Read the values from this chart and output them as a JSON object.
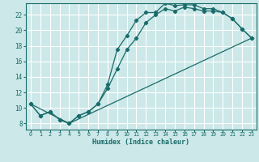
{
  "xlabel": "Humidex (Indice chaleur)",
  "bg_color": "#cce8e8",
  "grid_color": "#ffffff",
  "line_color": "#1a6b6b",
  "xlim": [
    -0.5,
    23.5
  ],
  "ylim": [
    7.2,
    23.5
  ],
  "xticks": [
    0,
    1,
    2,
    3,
    4,
    5,
    6,
    7,
    8,
    9,
    10,
    11,
    12,
    13,
    14,
    15,
    16,
    17,
    18,
    19,
    20,
    21,
    22,
    23
  ],
  "yticks": [
    8,
    10,
    12,
    14,
    16,
    18,
    20,
    22
  ],
  "curve1_x": [
    0,
    1,
    2,
    3,
    4,
    5,
    6,
    7,
    8,
    9,
    10,
    11,
    12,
    13,
    14,
    15,
    16,
    17,
    18,
    19,
    20,
    21,
    22,
    23
  ],
  "curve1_y": [
    10.5,
    9.0,
    9.5,
    8.5,
    8.0,
    9.0,
    9.5,
    10.5,
    13.0,
    17.5,
    19.3,
    21.3,
    22.3,
    22.3,
    23.5,
    23.2,
    23.3,
    23.3,
    22.8,
    22.8,
    22.3,
    21.5,
    20.2,
    19.0
  ],
  "curve2_x": [
    0,
    1,
    2,
    3,
    4,
    5,
    6,
    7,
    8,
    9,
    10,
    11,
    12,
    13,
    14,
    15,
    16,
    17,
    18,
    19,
    20,
    21,
    22,
    23
  ],
  "curve2_y": [
    10.5,
    9.0,
    9.5,
    8.5,
    8.0,
    9.0,
    9.5,
    10.5,
    12.5,
    15.0,
    17.5,
    19.0,
    21.0,
    22.0,
    22.8,
    22.5,
    23.0,
    22.8,
    22.5,
    22.5,
    22.3,
    21.5,
    20.2,
    19.0
  ],
  "line3_x": [
    0,
    4,
    23
  ],
  "line3_y": [
    10.5,
    8.0,
    19.0
  ]
}
